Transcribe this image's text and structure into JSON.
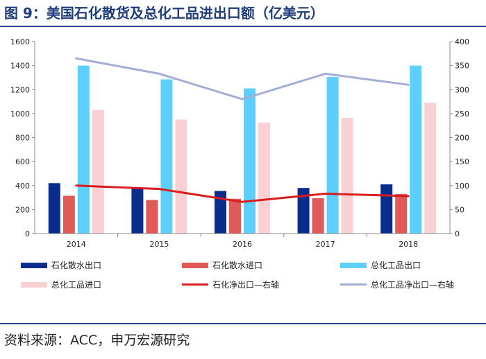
{
  "title": "图 9：美国石化散货及总化工品进出口额（亿美元）",
  "source": "资料来源：ACC，申万宏源研究",
  "colors": {
    "petro_export": "#0a2c8c",
    "petro_import": "#e05a5a",
    "chem_export": "#5ccfff",
    "chem_import": "#f9d0d4",
    "petro_net": "#d91c1c",
    "chem_net": "#a3aed6"
  },
  "chart_data": {
    "type": "bar",
    "categories": [
      "2014",
      "2015",
      "2016",
      "2017",
      "2018"
    ],
    "ylim": [
      0,
      1600
    ],
    "y_ticks": [
      0,
      200,
      400,
      600,
      800,
      1000,
      1200,
      1400,
      1600
    ],
    "y2lim": [
      0,
      400
    ],
    "y2_ticks": [
      0,
      50,
      100,
      150,
      200,
      250,
      300,
      350,
      400
    ],
    "grid": false,
    "legend_position": "bottom",
    "series": [
      {
        "name": "石化散水出口",
        "kind": "bar",
        "axis": "left",
        "values": [
          420,
          375,
          355,
          380,
          410
        ]
      },
      {
        "name": "石化散水进口",
        "kind": "bar",
        "axis": "left",
        "values": [
          315,
          280,
          290,
          295,
          330
        ]
      },
      {
        "name": "总化工品出口",
        "kind": "bar",
        "axis": "left",
        "values": [
          1400,
          1285,
          1210,
          1305,
          1400
        ]
      },
      {
        "name": "总化工品进口",
        "kind": "bar",
        "axis": "left",
        "values": [
          1030,
          950,
          925,
          965,
          1090
        ]
      },
      {
        "name": "石化净出口—右轴",
        "kind": "line",
        "axis": "right",
        "values": [
          100,
          93,
          66,
          83,
          78
        ]
      },
      {
        "name": "总化工品净出口—右轴",
        "kind": "line",
        "axis": "right",
        "values": [
          365,
          333,
          280,
          333,
          310
        ]
      }
    ]
  }
}
